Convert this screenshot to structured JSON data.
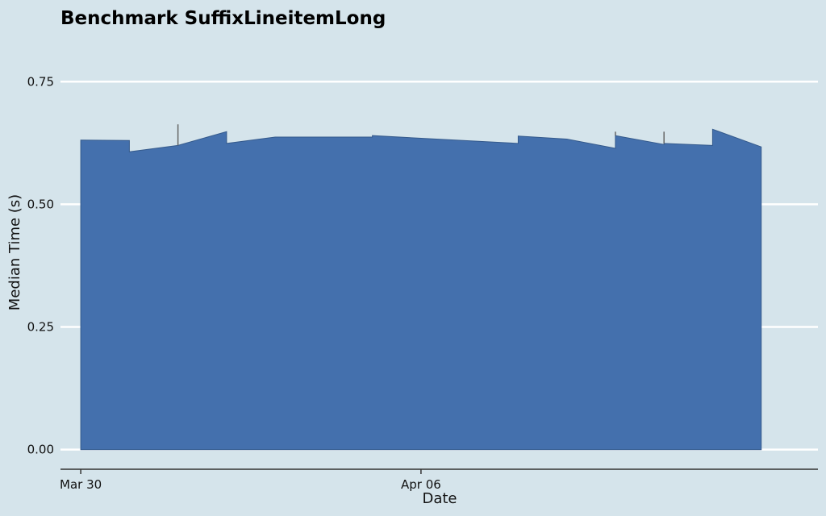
{
  "chart_data": {
    "type": "area",
    "title": "Benchmark SuffixLineitemLong",
    "xlabel": "Date",
    "ylabel": "Median Time (s)",
    "x_tick_labels": [
      "Mar 30",
      "Apr 06"
    ],
    "x_tick_values": [
      "2018-03-30",
      "2018-04-06"
    ],
    "y_tick_labels": [
      "0.00",
      "0.25",
      "0.50",
      "0.75"
    ],
    "y_tick_values": [
      0,
      0.25,
      0.5,
      0.75
    ],
    "xlim": [
      "2018-03-29T14:00",
      "2018-04-14T04:00"
    ],
    "ylim": [
      -0.04,
      0.9
    ],
    "grid": "horizontal",
    "colors": {
      "fill": "#4470ad",
      "background": "#d5e4eb",
      "grid": "#ffffff",
      "axis": "#333333",
      "errorbar": "#666666"
    },
    "series": [
      {
        "x": [
          "2018-03-30",
          "2018-03-31",
          "2018-04-01",
          "2018-04-02",
          "2018-04-03",
          "2018-04-05",
          "2018-04-08",
          "2018-04-09",
          "2018-04-10",
          "2018-04-11",
          "2018-04-12",
          "2018-04-13"
        ],
        "start": [
          0.631,
          0.607,
          0.62,
          0.624,
          0.637,
          0.64,
          0.639,
          0.633,
          0.64,
          0.624,
          0.653,
          0.617
        ],
        "end": [
          0.63,
          0.62,
          0.648,
          0.637,
          0.637,
          0.624,
          0.633,
          0.614,
          0.622,
          0.62,
          0.617,
          0.617
        ]
      }
    ],
    "error_bars": [
      {
        "x": "2018-04-01",
        "low": 0.62,
        "high": 0.663
      },
      {
        "x": "2018-04-10",
        "low": 0.64,
        "high": 0.648
      },
      {
        "x": "2018-04-11",
        "low": 0.624,
        "high": 0.648
      }
    ]
  }
}
